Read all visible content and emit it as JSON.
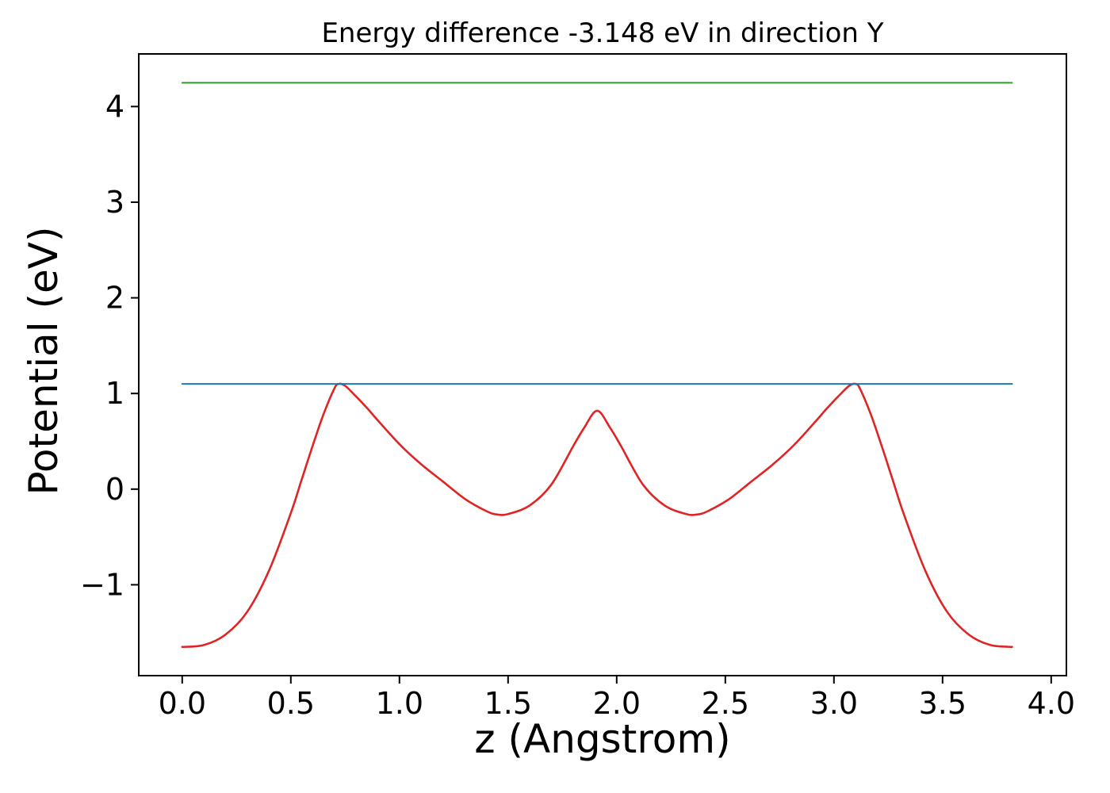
{
  "chart_data": {
    "type": "line",
    "title": "Energy difference -3.148 eV in direction Y",
    "xlabel": "z (Angstrom)",
    "ylabel": "Potential (eV)",
    "xlim": [
      -0.2,
      4.07
    ],
    "ylim": [
      -1.95,
      4.55
    ],
    "xticks": [
      0.0,
      0.5,
      1.0,
      1.5,
      2.0,
      2.5,
      3.0,
      3.5,
      4.0
    ],
    "xtick_labels": [
      "0.0",
      "0.5",
      "1.0",
      "1.5",
      "2.0",
      "2.5",
      "3.0",
      "3.5",
      "4.0"
    ],
    "yticks": [
      -1,
      0,
      1,
      2,
      3,
      4
    ],
    "ytick_labels": [
      "−1",
      "0",
      "1",
      "2",
      "3",
      "4"
    ],
    "grid": false,
    "legend": null,
    "energy_difference_ev": -3.148,
    "direction": "Y",
    "series": [
      {
        "name": "potential-profile",
        "color": "#e02424",
        "width": 2.6,
        "x": [
          0.0,
          0.1,
          0.2,
          0.3,
          0.4,
          0.5,
          0.55,
          0.6,
          0.65,
          0.7,
          0.72,
          0.75,
          0.8,
          0.85,
          0.9,
          1.0,
          1.1,
          1.2,
          1.3,
          1.4,
          1.45,
          1.5,
          1.6,
          1.7,
          1.8,
          1.85,
          1.91,
          1.97,
          2.02,
          2.12,
          2.22,
          2.32,
          2.37,
          2.42,
          2.52,
          2.62,
          2.72,
          2.82,
          2.92,
          2.97,
          3.02,
          3.07,
          3.1,
          3.12,
          3.17,
          3.22,
          3.27,
          3.32,
          3.42,
          3.52,
          3.62,
          3.72,
          3.82
        ],
        "y": [
          -1.65,
          -1.63,
          -1.52,
          -1.28,
          -0.85,
          -0.25,
          0.1,
          0.45,
          0.78,
          1.05,
          1.1,
          1.08,
          0.97,
          0.85,
          0.72,
          0.47,
          0.26,
          0.08,
          -0.1,
          -0.23,
          -0.265,
          -0.26,
          -0.17,
          0.05,
          0.45,
          0.64,
          0.82,
          0.64,
          0.45,
          0.05,
          -0.17,
          -0.26,
          -0.265,
          -0.23,
          -0.1,
          0.08,
          0.26,
          0.47,
          0.72,
          0.85,
          0.97,
          1.08,
          1.1,
          1.05,
          0.78,
          0.45,
          0.1,
          -0.25,
          -0.85,
          -1.28,
          -1.52,
          -1.63,
          -1.65
        ]
      },
      {
        "name": "energy-level-lower",
        "color": "#1f77b4",
        "width": 2.0,
        "x": [
          0.0,
          3.82
        ],
        "y": [
          1.1,
          1.1
        ]
      },
      {
        "name": "energy-level-upper",
        "color": "#2ca02c",
        "width": 2.0,
        "x": [
          0.0,
          3.82
        ],
        "y": [
          4.248,
          4.248
        ]
      }
    ]
  }
}
